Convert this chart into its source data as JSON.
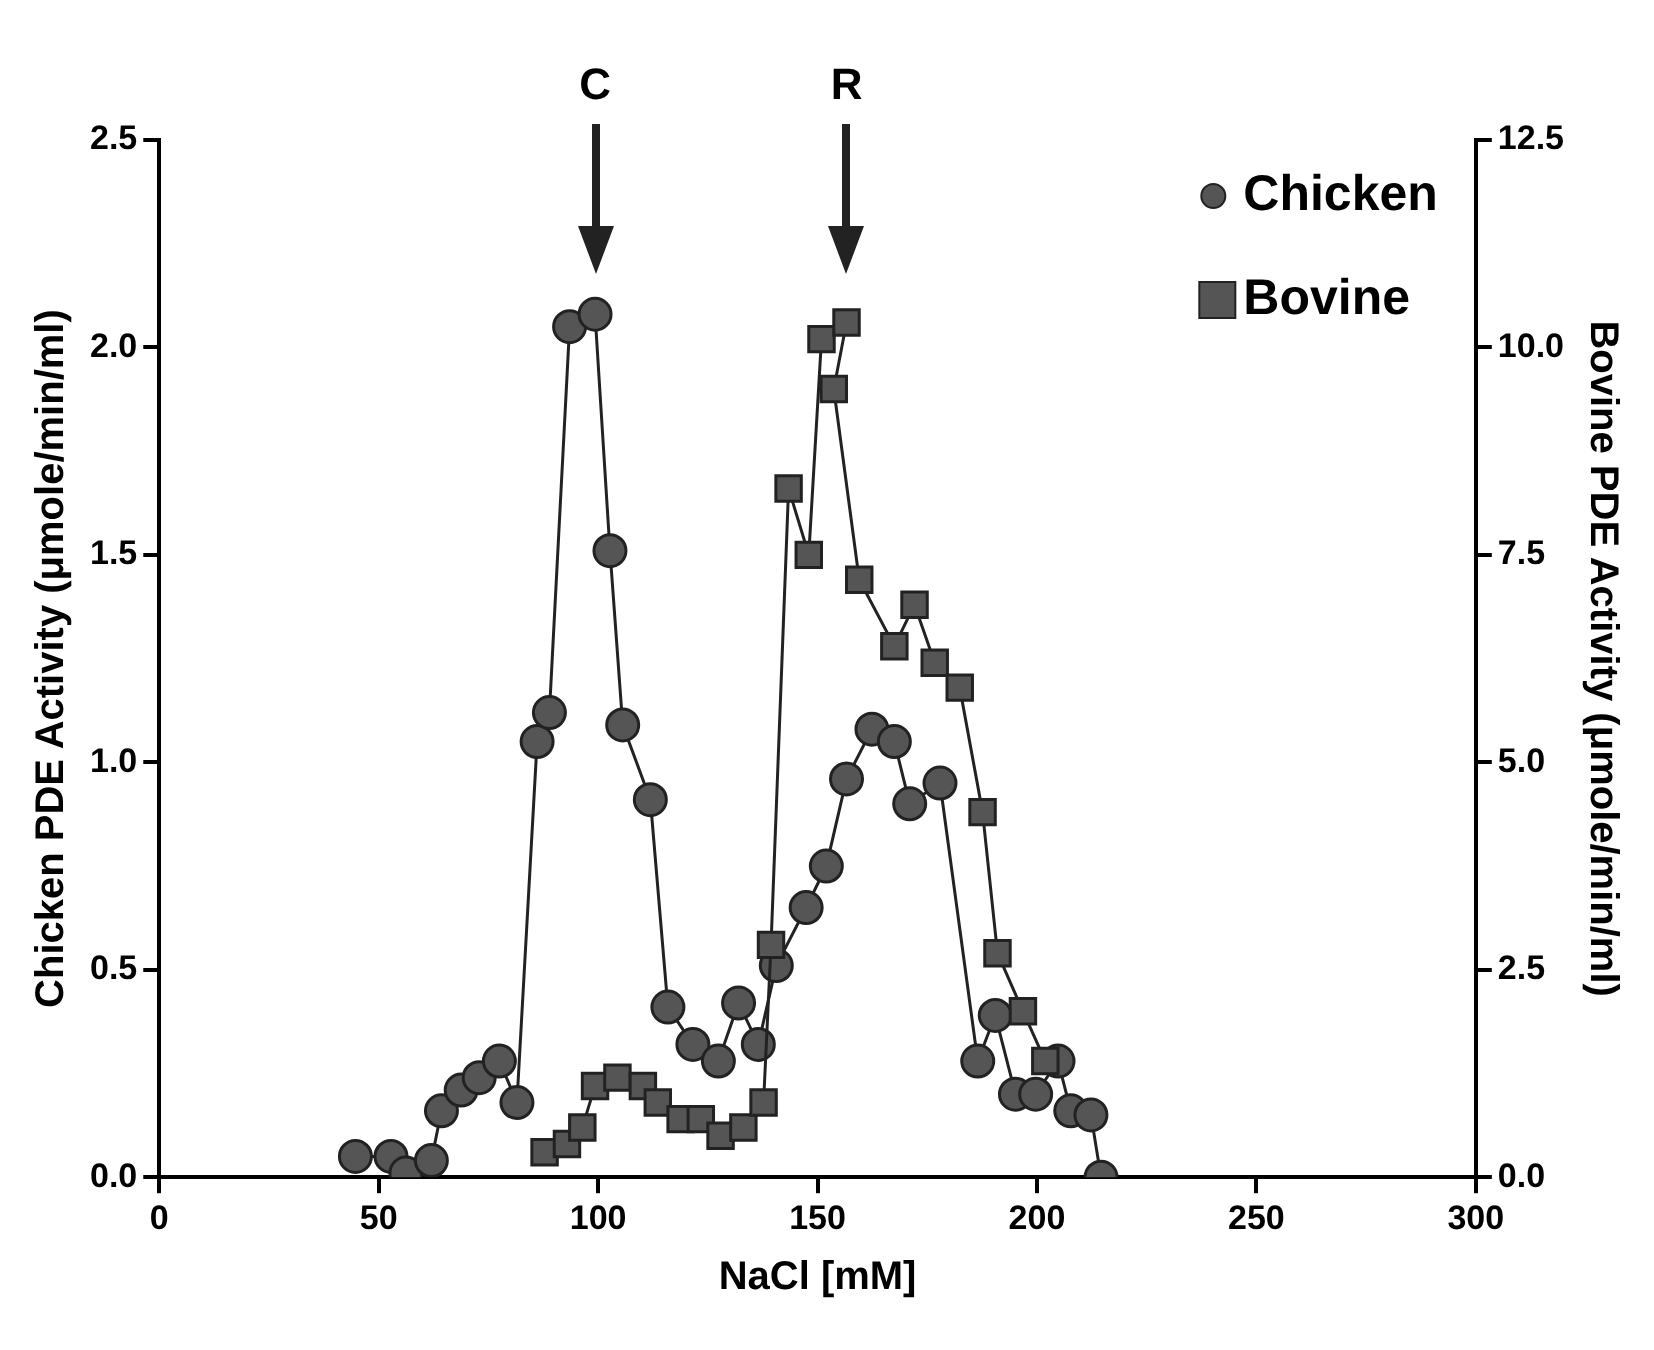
{
  "chart_data": {
    "type": "line",
    "xlabel": "NaCl [mM]",
    "ylabel": "Chicken PDE Activity (μmole/min/ml)",
    "y2label": "Bovine PDE Activity (μmole/min/ml)",
    "xlim": [
      0,
      300
    ],
    "xticks": [
      0,
      50,
      100,
      150,
      200,
      250,
      300
    ],
    "ylim": [
      0,
      2.5
    ],
    "yticks": [
      {
        "value": 0,
        "label": "0.0"
      },
      {
        "value": 0.5,
        "label": "0.5"
      },
      {
        "value": 1,
        "label": "1.0"
      },
      {
        "value": 1.5,
        "label": "1.5"
      },
      {
        "value": 2,
        "label": "2.0"
      },
      {
        "value": 2.5,
        "label": "2.5"
      }
    ],
    "y2lim": [
      0,
      12.5
    ],
    "y2ticks": [
      {
        "value": 0,
        "label": "0.0"
      },
      {
        "value": 2.5,
        "label": "2.5"
      },
      {
        "value": 5,
        "label": "5.0"
      },
      {
        "value": 7.5,
        "label": "7.5"
      },
      {
        "value": 10,
        "label": "10.0"
      },
      12.5
    ],
    "legend": "top right",
    "grid": false,
    "annotations": [
      {
        "text": "C",
        "x": 99.3
      },
      {
        "text": "R",
        "x": 156.6
      }
    ],
    "series": [
      {
        "name": "Chicken",
        "color": "#555555",
        "marker": "circle",
        "x": [
          44.7,
          52.8,
          56.2,
          62,
          64.3,
          68.8,
          72.9,
          77.5,
          81.5,
          86.1,
          88.9,
          93.5,
          99.3,
          102.7,
          105.6,
          111.9,
          115.9,
          121.6,
          127.4,
          132,
          136.5,
          140.6,
          147.4,
          152,
          156.6,
          162.4,
          167.5,
          171,
          177.9,
          186.5,
          190.5,
          195.1,
          199.7,
          204.8,
          207.7,
          212.3,
          214.6
        ],
        "values": [
          0.05,
          0.05,
          0.01,
          0.04,
          0.16,
          0.21,
          0.24,
          0.28,
          0.18,
          1.05,
          1.12,
          2.05,
          2.08,
          1.51,
          1.09,
          0.91,
          0.41,
          0.32,
          0.28,
          0.42,
          0.32,
          0.51,
          0.65,
          0.75,
          0.96,
          1.08,
          1.05,
          0.9,
          0.95,
          0.28,
          0.39,
          0.2,
          0.2,
          0.28,
          0.16,
          0.15,
          0
        ]
      },
      {
        "name": "Bovine",
        "color": "#555555",
        "marker": "square",
        "axis": "y2",
        "x": [
          87.8,
          92.9,
          96.4,
          99.3,
          104.4,
          110.2,
          113.6,
          118.8,
          123.4,
          127.9,
          133.1,
          137.7,
          139.4,
          143.4,
          148,
          150.9,
          156.6,
          153.7,
          159.5,
          167.5,
          172.1,
          176.7,
          182.4,
          187.6,
          191,
          196.8,
          201.9
        ],
        "values": [
          0.3,
          0.4,
          0.6,
          1.1,
          1.2,
          1.1,
          0.9,
          0.7,
          0.7,
          0.5,
          0.6,
          0.9,
          2.8,
          8.3,
          7.5,
          10.1,
          10.3,
          9.5,
          7.2,
          6.4,
          6.9,
          6.2,
          5.9,
          4.4,
          2.7,
          2,
          1.4
        ]
      }
    ]
  }
}
